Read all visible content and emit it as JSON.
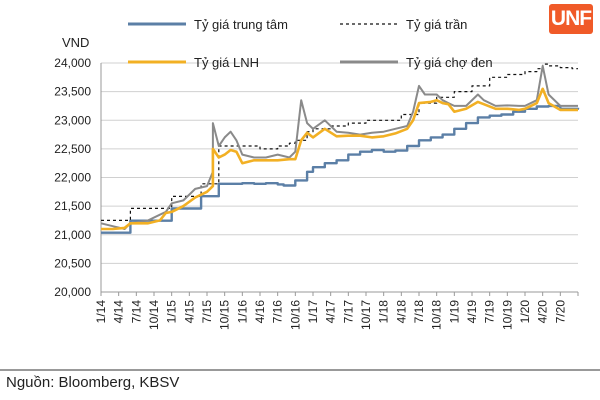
{
  "source_note": "Nguồn:  Bloomberg, KBSV",
  "logo": {
    "text": "UNF",
    "color": "#f05a28"
  },
  "chart_data": {
    "type": "line",
    "y_unit_label": "VND",
    "ylim": [
      20000,
      24000
    ],
    "y_ticks": [
      20000,
      20500,
      21000,
      21500,
      22000,
      22500,
      23000,
      23500,
      24000
    ],
    "y_tick_labels": [
      "20,000",
      "20,500",
      "21,000",
      "21,500",
      "22,000",
      "22,500",
      "23,000",
      "23,500",
      "24,000"
    ],
    "x_tick_labels": [
      "1/14",
      "4/14",
      "7/14",
      "10/14",
      "1/15",
      "4/15",
      "7/15",
      "10/15",
      "1/16",
      "4/16",
      "7/16",
      "10/16",
      "1/17",
      "4/17",
      "7/17",
      "10/17",
      "1/18",
      "4/18",
      "7/18",
      "10/18",
      "1/19",
      "4/19",
      "7/19",
      "10/19",
      "1/20",
      "4/20",
      "7/20"
    ],
    "x_range": [
      "1/14",
      "10/20"
    ],
    "grid": "horizontal",
    "legend_position": "top",
    "series": [
      {
        "name": "Tỷ giá trung tâm",
        "color": "#5b7fa6",
        "style": "solid",
        "points": [
          [
            "1/14",
            21036
          ],
          [
            "4/14",
            21036
          ],
          [
            "5/14",
            21036
          ],
          [
            "6/14",
            21246
          ],
          [
            "10/14",
            21246
          ],
          [
            "12/14",
            21246
          ],
          [
            "1/15",
            21458
          ],
          [
            "5/15",
            21458
          ],
          [
            "6/15",
            21673
          ],
          [
            "8/15",
            21673
          ],
          [
            "9/15",
            21890
          ],
          [
            "10/15",
            21890
          ],
          [
            "12/15",
            21890
          ],
          [
            "1/16",
            21900
          ],
          [
            "3/16",
            21890
          ],
          [
            "5/16",
            21900
          ],
          [
            "7/16",
            21880
          ],
          [
            "8/16",
            21860
          ],
          [
            "10/16",
            21950
          ],
          [
            "12/16",
            22100
          ],
          [
            "1/17",
            22180
          ],
          [
            "3/17",
            22250
          ],
          [
            "5/17",
            22300
          ],
          [
            "7/17",
            22400
          ],
          [
            "9/17",
            22450
          ],
          [
            "11/17",
            22480
          ],
          [
            "1/18",
            22450
          ],
          [
            "3/18",
            22470
          ],
          [
            "5/18",
            22550
          ],
          [
            "7/18",
            22650
          ],
          [
            "9/18",
            22700
          ],
          [
            "11/18",
            22750
          ],
          [
            "1/19",
            22850
          ],
          [
            "3/19",
            22950
          ],
          [
            "5/19",
            23050
          ],
          [
            "7/19",
            23080
          ],
          [
            "9/19",
            23100
          ],
          [
            "11/19",
            23150
          ],
          [
            "1/20",
            23200
          ],
          [
            "3/20",
            23240
          ],
          [
            "5/20",
            23250
          ],
          [
            "7/20",
            23200
          ],
          [
            "9/20",
            23200
          ],
          [
            "10/20",
            23220
          ]
        ]
      },
      {
        "name": "Tỷ giá trần",
        "color": "#111111",
        "style": "dashed",
        "points": [
          [
            "1/14",
            21250
          ],
          [
            "5/14",
            21250
          ],
          [
            "6/14",
            21460
          ],
          [
            "12/14",
            21460
          ],
          [
            "1/15",
            21670
          ],
          [
            "5/15",
            21670
          ],
          [
            "6/15",
            21890
          ],
          [
            "8/15",
            21890
          ],
          [
            "9/15",
            22550
          ],
          [
            "12/15",
            22550
          ],
          [
            "1/16",
            22550
          ],
          [
            "4/16",
            22500
          ],
          [
            "7/16",
            22550
          ],
          [
            "9/16",
            22600
          ],
          [
            "10/16",
            22650
          ],
          [
            "12/16",
            22800
          ],
          [
            "1/17",
            22850
          ],
          [
            "4/17",
            22900
          ],
          [
            "7/17",
            22950
          ],
          [
            "10/17",
            23000
          ],
          [
            "1/18",
            23000
          ],
          [
            "4/18",
            23100
          ],
          [
            "7/18",
            23300
          ],
          [
            "10/18",
            23400
          ],
          [
            "1/19",
            23500
          ],
          [
            "4/19",
            23600
          ],
          [
            "7/19",
            23750
          ],
          [
            "10/19",
            23800
          ],
          [
            "1/20",
            23850
          ],
          [
            "3/20",
            23900
          ],
          [
            "4/20",
            23980
          ],
          [
            "5/20",
            23950
          ],
          [
            "7/20",
            23920
          ],
          [
            "9/20",
            23900
          ],
          [
            "10/20",
            23900
          ]
        ]
      },
      {
        "name": "Tỷ giá LNH",
        "color": "#f2b024",
        "style": "solid",
        "points": [
          [
            "1/14",
            21100
          ],
          [
            "3/14",
            21100
          ],
          [
            "5/14",
            21120
          ],
          [
            "6/14",
            21200
          ],
          [
            "9/14",
            21200
          ],
          [
            "11/14",
            21250
          ],
          [
            "12/14",
            21380
          ],
          [
            "1/15",
            21400
          ],
          [
            "3/15",
            21500
          ],
          [
            "5/15",
            21650
          ],
          [
            "7/15",
            21750
          ],
          [
            "8/15",
            21850
          ],
          [
            "8/15",
            22500
          ],
          [
            "9/15",
            22350
          ],
          [
            "10/15",
            22400
          ],
          [
            "11/15",
            22480
          ],
          [
            "12/15",
            22450
          ],
          [
            "1/16",
            22250
          ],
          [
            "3/16",
            22300
          ],
          [
            "5/16",
            22300
          ],
          [
            "7/16",
            22300
          ],
          [
            "9/16",
            22320
          ],
          [
            "10/16",
            22320
          ],
          [
            "11/16",
            22650
          ],
          [
            "12/16",
            22780
          ],
          [
            "1/17",
            22700
          ],
          [
            "3/17",
            22850
          ],
          [
            "5/17",
            22720
          ],
          [
            "7/17",
            22730
          ],
          [
            "9/17",
            22730
          ],
          [
            "11/17",
            22700
          ],
          [
            "1/18",
            22720
          ],
          [
            "3/18",
            22770
          ],
          [
            "5/18",
            22850
          ],
          [
            "6/18",
            23000
          ],
          [
            "7/18",
            23300
          ],
          [
            "9/18",
            23320
          ],
          [
            "10/18",
            23350
          ],
          [
            "11/18",
            23300
          ],
          [
            "12/18",
            23280
          ],
          [
            "1/19",
            23150
          ],
          [
            "3/19",
            23200
          ],
          [
            "5/19",
            23320
          ],
          [
            "6/19",
            23280
          ],
          [
            "8/19",
            23200
          ],
          [
            "10/19",
            23200
          ],
          [
            "12/19",
            23180
          ],
          [
            "1/20",
            23200
          ],
          [
            "3/20",
            23300
          ],
          [
            "4/20",
            23550
          ],
          [
            "5/20",
            23300
          ],
          [
            "7/20",
            23180
          ],
          [
            "9/20",
            23180
          ],
          [
            "10/20",
            23180
          ]
        ]
      },
      {
        "name": "Tỷ giá chợ đen",
        "color": "#8a8a8a",
        "style": "solid",
        "points": [
          [
            "1/14",
            21200
          ],
          [
            "3/14",
            21150
          ],
          [
            "5/14",
            21100
          ],
          [
            "6/14",
            21200
          ],
          [
            "9/14",
            21250
          ],
          [
            "11/14",
            21350
          ],
          [
            "12/14",
            21400
          ],
          [
            "1/15",
            21550
          ],
          [
            "3/15",
            21600
          ],
          [
            "5/15",
            21800
          ],
          [
            "7/15",
            21850
          ],
          [
            "8/15",
            22100
          ],
          [
            "8/15",
            22950
          ],
          [
            "9/15",
            22550
          ],
          [
            "10/15",
            22700
          ],
          [
            "11/15",
            22800
          ],
          [
            "12/15",
            22650
          ],
          [
            "1/16",
            22400
          ],
          [
            "3/16",
            22350
          ],
          [
            "5/16",
            22350
          ],
          [
            "7/16",
            22400
          ],
          [
            "9/16",
            22350
          ],
          [
            "10/16",
            22450
          ],
          [
            "11/16",
            23350
          ],
          [
            "12/16",
            22950
          ],
          [
            "1/17",
            22850
          ],
          [
            "3/17",
            23000
          ],
          [
            "5/17",
            22800
          ],
          [
            "7/17",
            22780
          ],
          [
            "9/17",
            22750
          ],
          [
            "11/17",
            22780
          ],
          [
            "1/18",
            22800
          ],
          [
            "3/18",
            22850
          ],
          [
            "5/18",
            22900
          ],
          [
            "6/18",
            23150
          ],
          [
            "7/18",
            23600
          ],
          [
            "8/18",
            23450
          ],
          [
            "10/18",
            23450
          ],
          [
            "11/18",
            23350
          ],
          [
            "12/18",
            23300
          ],
          [
            "1/19",
            23250
          ],
          [
            "3/19",
            23250
          ],
          [
            "5/19",
            23450
          ],
          [
            "6/19",
            23350
          ],
          [
            "8/19",
            23250
          ],
          [
            "10/19",
            23260
          ],
          [
            "12/19",
            23250
          ],
          [
            "1/20",
            23250
          ],
          [
            "3/20",
            23350
          ],
          [
            "4/20",
            23950
          ],
          [
            "5/20",
            23450
          ],
          [
            "7/20",
            23250
          ],
          [
            "9/20",
            23250
          ],
          [
            "10/20",
            23250
          ]
        ]
      }
    ]
  }
}
